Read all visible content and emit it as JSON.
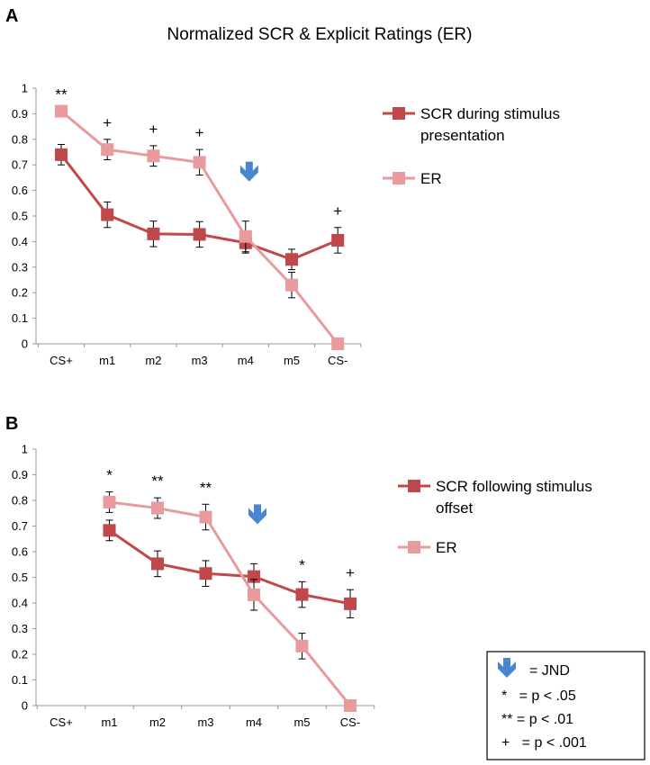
{
  "title": "Normalized SCR & Explicit Ratings (ER)",
  "colors": {
    "scr": "#C0474A",
    "er": "#E89A9D",
    "arrow": "#4A86D0",
    "axis": "#999999",
    "error": "#000000"
  },
  "key": {
    "jnd": "= JND",
    "p05": "*   = p < .05",
    "p01": "** = p < .01",
    "p001": "+   = p < .001"
  },
  "chart_data": [
    {
      "panel": "A",
      "type": "line",
      "categories": [
        "CS+",
        "m1",
        "m2",
        "m3",
        "m4",
        "m5",
        "CS-"
      ],
      "ylim": [
        0,
        1
      ],
      "yticks": [
        "0",
        "0.1",
        "0.2",
        "0.3",
        "0.4",
        "0.5",
        "0.6",
        "0.7",
        "0.8",
        "0.9",
        "1"
      ],
      "legend_position": "right",
      "series": [
        {
          "name": "SCR during stimulus presentation",
          "legend_lines": [
            "SCR during stimulus",
            "presentation"
          ],
          "color_key": "scr",
          "values": [
            0.74,
            0.505,
            0.43,
            0.428,
            0.395,
            0.33,
            0.405
          ],
          "errors": [
            0.04,
            0.05,
            0.05,
            0.05,
            0.04,
            0.04,
            0.05
          ]
        },
        {
          "name": "ER",
          "legend_lines": [
            "ER"
          ],
          "color_key": "er",
          "values": [
            0.91,
            0.76,
            0.735,
            0.71,
            0.42,
            0.23,
            0.0
          ],
          "errors": [
            0.0,
            0.04,
            0.04,
            0.05,
            0.06,
            0.05,
            0.0
          ]
        }
      ],
      "significance": [
        {
          "category": "CS+",
          "label": "**"
        },
        {
          "category": "m1",
          "label": "+"
        },
        {
          "category": "m2",
          "label": "+"
        },
        {
          "category": "m3",
          "label": "+"
        },
        {
          "category": "CS-",
          "label": "+"
        }
      ],
      "jnd_category": "m4"
    },
    {
      "panel": "B",
      "type": "line",
      "categories": [
        "CS+",
        "m1",
        "m2",
        "m3",
        "m4",
        "m5",
        "CS-"
      ],
      "ylim": [
        0,
        1
      ],
      "yticks": [
        "0",
        "0.1",
        "0.2",
        "0.3",
        "0.4",
        "0.5",
        "0.6",
        "0.7",
        "0.8",
        "0.9",
        "1"
      ],
      "legend_position": "right",
      "series": [
        {
          "name": "SCR following stimulus offset",
          "legend_lines": [
            "SCR following stimulus",
            "offset"
          ],
          "color_key": "scr",
          "values": [
            null,
            0.683,
            0.553,
            0.515,
            0.503,
            0.433,
            0.397
          ],
          "errors": [
            0,
            0.04,
            0.05,
            0.05,
            0.05,
            0.05,
            0.055
          ]
        },
        {
          "name": "ER",
          "legend_lines": [
            "ER"
          ],
          "color_key": "er",
          "values": [
            null,
            0.793,
            0.77,
            0.735,
            0.432,
            0.232,
            0.0
          ],
          "errors": [
            0,
            0.04,
            0.04,
            0.05,
            0.06,
            0.05,
            0.0
          ]
        }
      ],
      "significance": [
        {
          "category": "m1",
          "label": "*"
        },
        {
          "category": "m2",
          "label": "**"
        },
        {
          "category": "m3",
          "label": "**"
        },
        {
          "category": "m5",
          "label": "*"
        },
        {
          "category": "CS-",
          "label": "+"
        }
      ],
      "jnd_category": "m4"
    }
  ]
}
